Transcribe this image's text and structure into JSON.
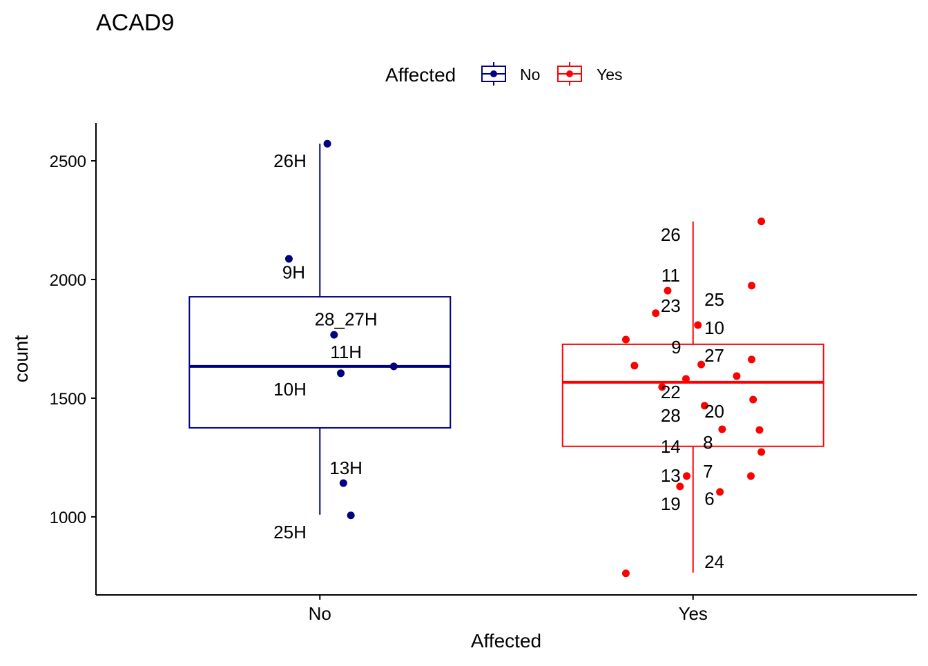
{
  "chart_data": {
    "type": "boxplot",
    "title": "ACAD9",
    "xlabel": "Affected",
    "ylabel": "count",
    "categories": [
      "No",
      "Yes"
    ],
    "ylim": [
      671,
      2660
    ],
    "yticks": [
      1000,
      1500,
      2000,
      2500
    ],
    "grid": false,
    "legend": {
      "title": "Affected",
      "placement": "top",
      "entries": [
        "No",
        "Yes"
      ]
    },
    "colors": {
      "No": "#000080",
      "Yes": "#ff0000"
    },
    "series": [
      {
        "name": "No",
        "box": {
          "lower_whisker": 1009,
          "q1": 1375,
          "median": 1634,
          "q3": 1927,
          "upper_whisker": 2572
        },
        "points": [
          2572,
          2087,
          1767,
          1605,
          1634,
          1142,
          1006
        ],
        "labels": [
          {
            "text": "26H",
            "x": 0.92,
            "y": 2500
          },
          {
            "text": "9H",
            "x": 0.93,
            "y": 2030
          },
          {
            "text": "28_27H",
            "x": 1.07,
            "y": 1832
          },
          {
            "text": "11H",
            "x": 1.07,
            "y": 1695
          },
          {
            "text": "10H",
            "x": 0.92,
            "y": 1538
          },
          {
            "text": "13H",
            "x": 1.07,
            "y": 1206
          },
          {
            "text": "25H",
            "x": 0.92,
            "y": 936
          }
        ]
      },
      {
        "name": "Yes",
        "box": {
          "lower_whisker": 765,
          "q1": 1297,
          "median": 1567,
          "q3": 1727,
          "upper_whisker": 2244
        },
        "points": [
          2245,
          1974,
          1953,
          1858,
          1808,
          1747,
          1637,
          1642,
          1663,
          1593,
          1581,
          1547,
          1494,
          1468,
          1369,
          1366,
          1273,
          1172,
          1172,
          1128,
          1105,
          762
        ],
        "labels": [
          {
            "text": "26",
            "x": 1.94,
            "y": 2189
          },
          {
            "text": "11",
            "x": 1.94,
            "y": 2017
          },
          {
            "text": "23",
            "x": 1.94,
            "y": 1890
          },
          {
            "text": "25",
            "x": 2.057,
            "y": 1916
          },
          {
            "text": "10",
            "x": 2.057,
            "y": 1797
          },
          {
            "text": "9",
            "x": 1.955,
            "y": 1715
          },
          {
            "text": "27",
            "x": 2.057,
            "y": 1680
          },
          {
            "text": "22",
            "x": 1.94,
            "y": 1526
          },
          {
            "text": "20",
            "x": 2.057,
            "y": 1445
          },
          {
            "text": "28",
            "x": 1.94,
            "y": 1427
          },
          {
            "text": "8",
            "x": 2.04,
            "y": 1314
          },
          {
            "text": "14",
            "x": 1.94,
            "y": 1296
          },
          {
            "text": "7",
            "x": 2.04,
            "y": 1192
          },
          {
            "text": "13",
            "x": 1.94,
            "y": 1174
          },
          {
            "text": "6",
            "x": 2.044,
            "y": 1076
          },
          {
            "text": "19",
            "x": 1.94,
            "y": 1055
          },
          {
            "text": "24",
            "x": 2.057,
            "y": 811
          }
        ]
      }
    ]
  }
}
